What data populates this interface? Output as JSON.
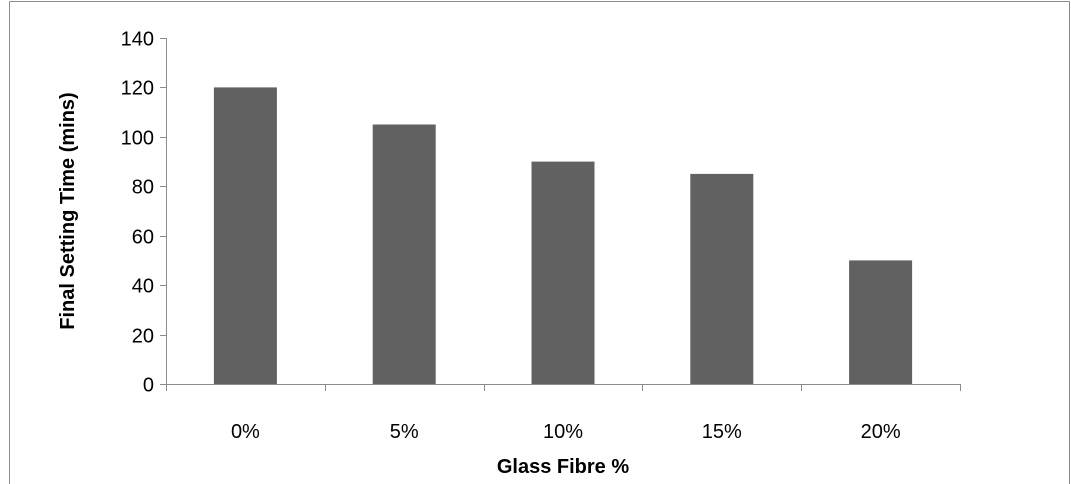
{
  "chart_data": {
    "type": "bar",
    "title": "",
    "xlabel": "Glass Fibre %",
    "ylabel": "Final Setting Time (mins)",
    "categories": [
      "0%",
      "5%",
      "10%",
      "15%",
      "20%"
    ],
    "values": [
      120,
      105,
      90,
      85,
      50
    ],
    "ylim": [
      0,
      140
    ],
    "yticks": [
      0,
      20,
      40,
      60,
      80,
      100,
      120,
      140
    ],
    "grid": false,
    "legend": "none",
    "bar_color": "#616161",
    "axis_color": "#8c8c8c",
    "border_color": "#8c8c8c"
  }
}
